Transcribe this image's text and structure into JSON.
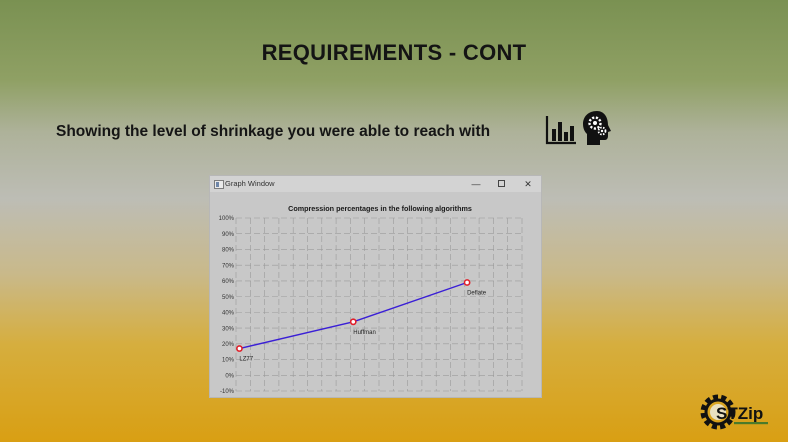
{
  "slide": {
    "title": "REQUIREMENTS - CONT",
    "subtitle": "Showing the level of shrinkage you were able to reach with"
  },
  "logo": {
    "text": "STZip"
  },
  "window": {
    "title": "Graph Window",
    "minimize_symbol": "—",
    "close_symbol": "✕"
  },
  "icons": [
    "bar-chart-icon",
    "head-gears-icon",
    "window-app-icon",
    "minimize-icon",
    "maximize-icon",
    "close-icon",
    "gear-logo-icon"
  ],
  "colors": {
    "line": "#3a1fd6",
    "marker": "#e0202a",
    "logo_gear": "#111111"
  },
  "chart_data": {
    "type": "line",
    "title": "Compression percentages in the following algorithms",
    "xlabel": "",
    "ylabel": "",
    "ylim": [
      -10,
      100
    ],
    "yticks": [
      "100%",
      "90%",
      "80%",
      "70%",
      "60%",
      "50%",
      "40%",
      "30%",
      "20%",
      "10%",
      "0%",
      "-10%"
    ],
    "grid": true,
    "points": [
      {
        "label": "LZ77",
        "value": 17
      },
      {
        "label": "Huffman",
        "value": 34
      },
      {
        "label": "Deflate",
        "value": 59
      }
    ]
  }
}
